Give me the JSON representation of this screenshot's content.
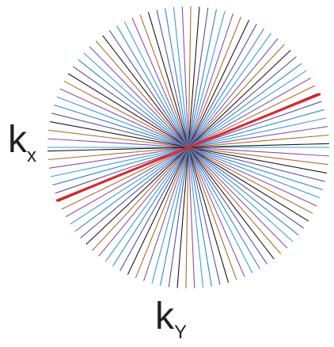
{
  "axes": {
    "kx": {
      "main": "k",
      "sub": "x"
    },
    "ky": {
      "main": "k",
      "sub": "Y"
    }
  },
  "trajectory": {
    "spoke_angles_deg": [
      0,
      3.5,
      7,
      10.5,
      14,
      17.5,
      21,
      24.5,
      28,
      31.5,
      35,
      38.5,
      42,
      45.5,
      49,
      52.5,
      56,
      59.5,
      63,
      66.5,
      70,
      73.5,
      77,
      80.5,
      84,
      87.5,
      91,
      94.5,
      98,
      101.5,
      105,
      108.5,
      112,
      115.5,
      119,
      122.5,
      126,
      129.5,
      133,
      136.5,
      140,
      143.5,
      147,
      150.5,
      154,
      157.5,
      161,
      164.5,
      168,
      171.5,
      175,
      178.5
    ],
    "highlighted_angle_deg": 158,
    "colors": [
      "#3b9fd8",
      "#8a4fb0",
      "#b06a2a",
      "#1a1a1a",
      "#5d4fa8",
      "#2f86c5"
    ],
    "highlight_color": "#e0262b"
  }
}
